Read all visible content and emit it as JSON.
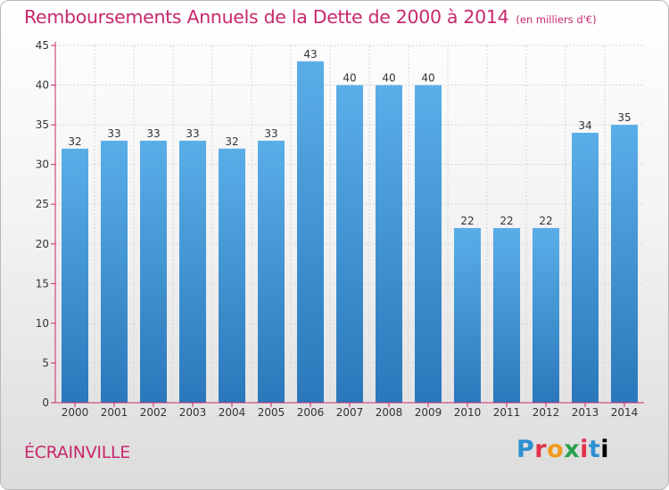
{
  "title": "Remboursements Annuels de la Dette de 2000 à 2014",
  "unit": "(en milliers d'€)",
  "commune": "ÉCRAINVILLE",
  "logo": [
    "P",
    "r",
    "o",
    "x",
    "i",
    "t",
    "i"
  ],
  "colors": {
    "accent": "#c8286c",
    "bar_light": "#5aaee8",
    "bar_dark": "#2a78bb",
    "axis": "#c8286c",
    "grid": "#d6d6d6"
  },
  "chart_data": {
    "type": "bar",
    "title": "Remboursements Annuels de la Dette de 2000 à 2014",
    "xlabel": "",
    "ylabel": "",
    "categories": [
      "2000",
      "2001",
      "2002",
      "2003",
      "2004",
      "2005",
      "2006",
      "2007",
      "2008",
      "2009",
      "2010",
      "2011",
      "2012",
      "2013",
      "2014"
    ],
    "values": [
      32,
      33,
      33,
      33,
      32,
      33,
      43,
      40,
      40,
      40,
      22,
      22,
      22,
      34,
      35
    ],
    "ylim": [
      0,
      45
    ],
    "yticks": [
      0,
      5,
      10,
      15,
      20,
      25,
      30,
      35,
      40,
      45
    ],
    "grid": true,
    "data_labels": true
  }
}
